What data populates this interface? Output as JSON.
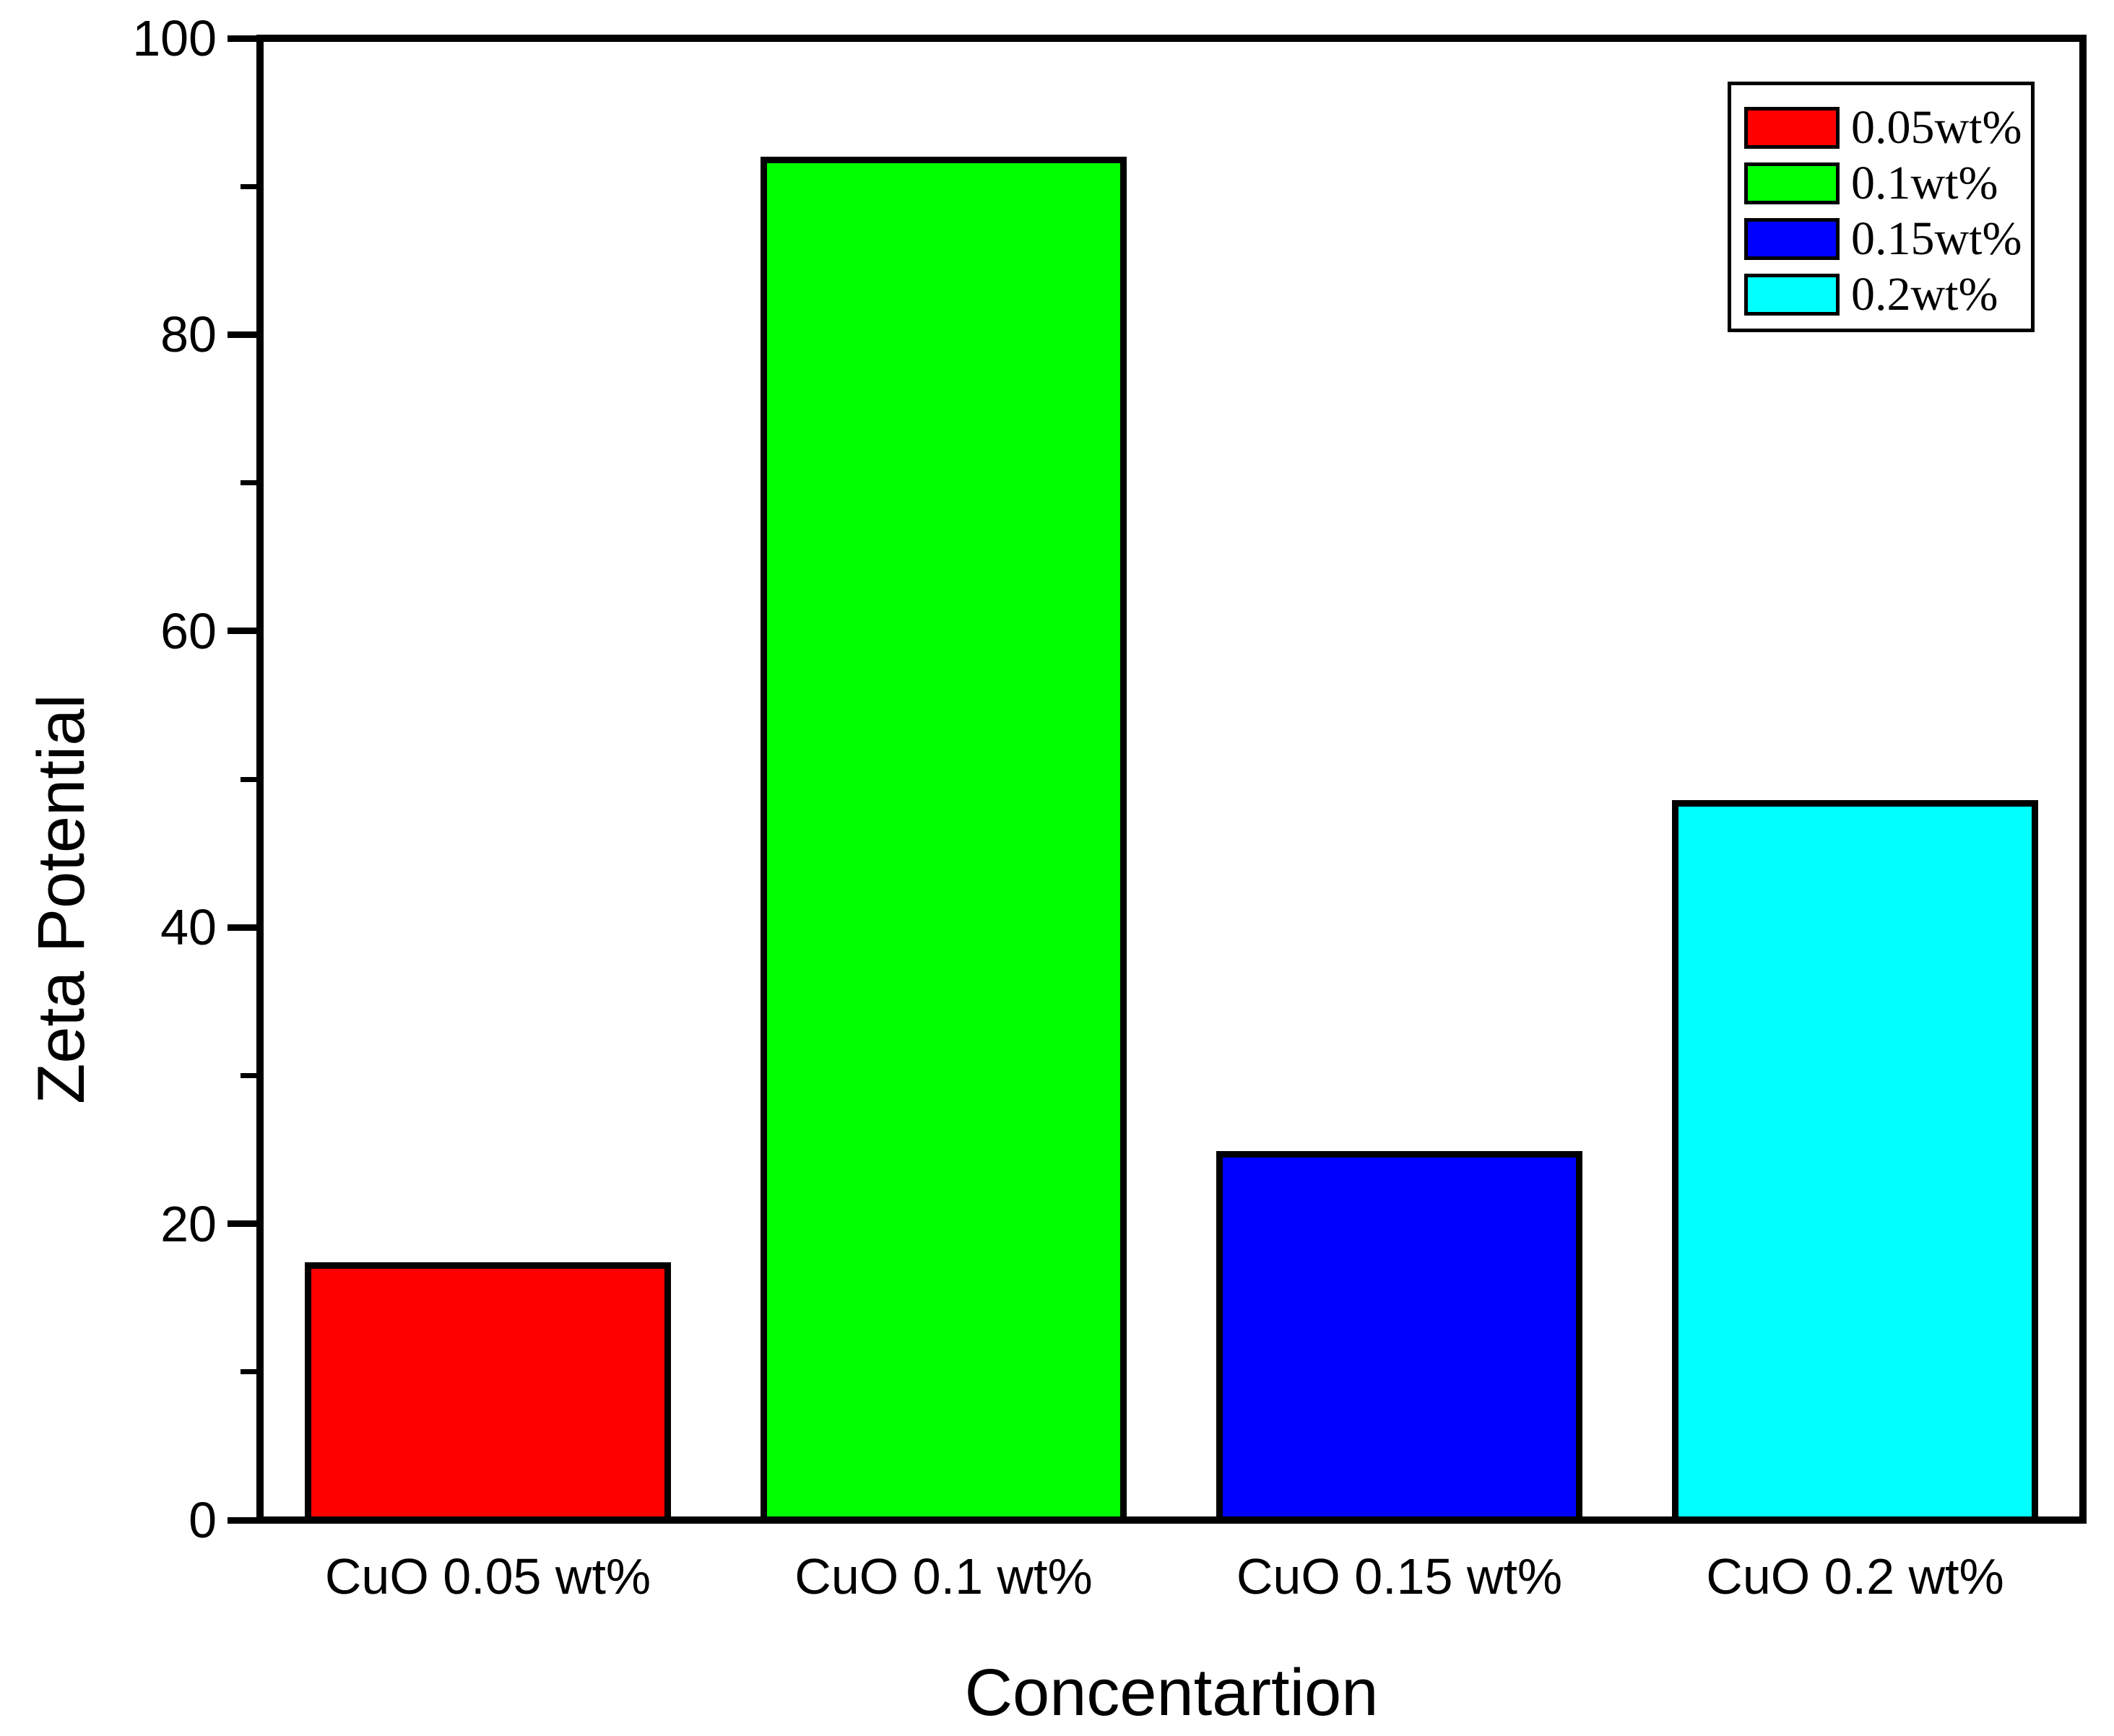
{
  "chart_data": {
    "type": "bar",
    "title": "",
    "xlabel": "Concentartion",
    "ylabel": "Zeta Potential",
    "categories": [
      "CuO 0.05 wt%",
      "CuO 0.1 wt%",
      "CuO 0.15 wt%",
      "CuO 0.2 wt%"
    ],
    "values": [
      17.4,
      92.0,
      24.9,
      48.6
    ],
    "bar_colors": [
      "#ff0000",
      "#00ff00",
      "#0000ff",
      "#00ffff"
    ],
    "bar_edge_color": "#000000",
    "ylim": [
      0,
      100
    ],
    "yticks_major": [
      0,
      20,
      40,
      60,
      80,
      100
    ],
    "yticks_minor": [
      10,
      30,
      50,
      70,
      90
    ],
    "grid": false,
    "legend_position": "top-right",
    "legend": [
      {
        "label": "0.05wt%",
        "color": "#ff0000"
      },
      {
        "label": "0.1wt%",
        "color": "#00ff00"
      },
      {
        "label": "0.15wt%",
        "color": "#0000ff"
      },
      {
        "label": "0.2wt%",
        "color": "#00ffff"
      }
    ]
  }
}
